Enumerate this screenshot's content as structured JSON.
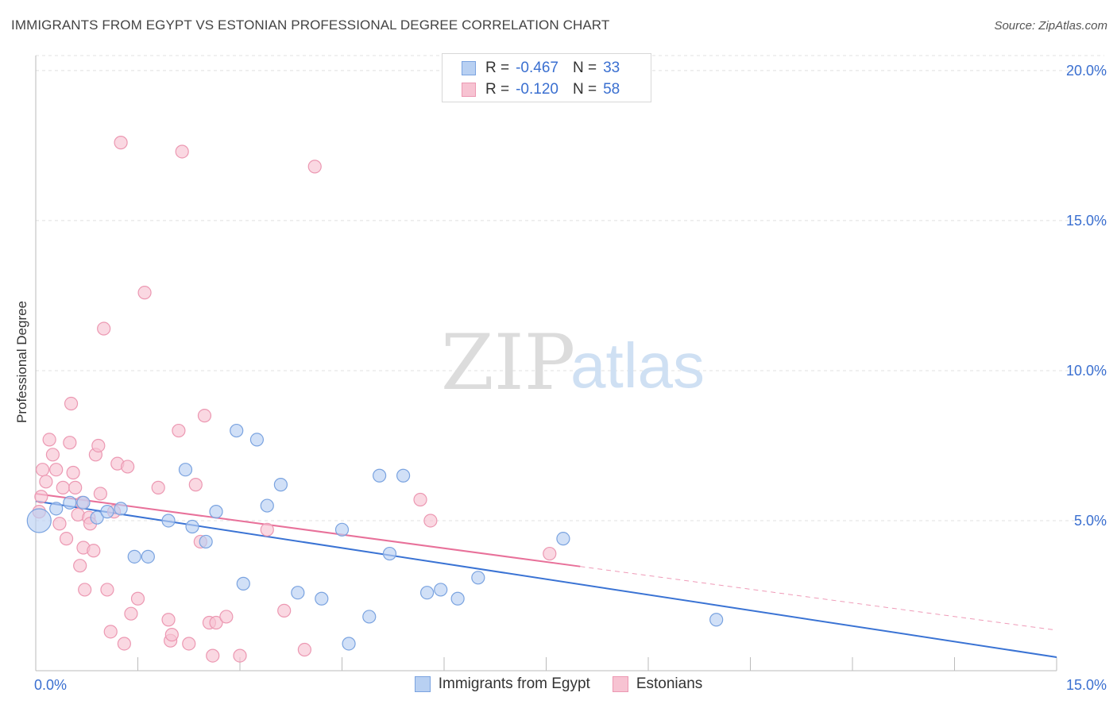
{
  "header": {
    "title": "IMMIGRANTS FROM EGYPT VS ESTONIAN PROFESSIONAL DEGREE CORRELATION CHART",
    "source": "Source: ZipAtlas.com"
  },
  "watermark": {
    "zip": "ZIP",
    "atlas": "atlas"
  },
  "legend": {
    "rows": [
      {
        "r_label": "R =",
        "r_value": "-0.467",
        "n_label": "N =",
        "n_value": "33"
      },
      {
        "r_label": "R =",
        "r_value": "-0.120",
        "n_label": "N =",
        "n_value": "58"
      }
    ]
  },
  "colors": {
    "blue_fill": "#b8d0f2",
    "blue_stroke": "#7aa3e0",
    "blue_line": "#3a73d4",
    "pink_fill": "#f7c3d2",
    "pink_stroke": "#ec98b2",
    "pink_line": "#e8719a"
  },
  "chart_data": {
    "type": "scatter",
    "title": "IMMIGRANTS FROM EGYPT VS ESTONIAN PROFESSIONAL DEGREE CORRELATION CHART",
    "xlabel": "",
    "ylabel": "Professional Degree",
    "xlim": [
      0,
      15
    ],
    "ylim": [
      0,
      20.5
    ],
    "x_tick_labels": [
      "0.0%",
      "15.0%"
    ],
    "y_ticks": [
      5,
      10,
      15,
      20
    ],
    "y_tick_labels": [
      "5.0%",
      "10.0%",
      "15.0%",
      "20.0%"
    ],
    "grid": true,
    "series": [
      {
        "name": "Immigrants from Egypt",
        "r": -0.467,
        "n": 33,
        "trend": {
          "x0": 0,
          "y0": 5.65,
          "x1": 15,
          "y1": 0.45,
          "solid_to": 15
        },
        "points": [
          {
            "x": 0.05,
            "y": 5.0,
            "big": true
          },
          {
            "x": 0.3,
            "y": 5.4
          },
          {
            "x": 0.5,
            "y": 5.6
          },
          {
            "x": 0.7,
            "y": 5.6
          },
          {
            "x": 0.9,
            "y": 5.1
          },
          {
            "x": 1.05,
            "y": 5.3
          },
          {
            "x": 1.25,
            "y": 5.4
          },
          {
            "x": 1.45,
            "y": 3.8
          },
          {
            "x": 1.65,
            "y": 3.8
          },
          {
            "x": 1.95,
            "y": 5.0
          },
          {
            "x": 2.2,
            "y": 6.7
          },
          {
            "x": 2.3,
            "y": 4.8
          },
          {
            "x": 2.5,
            "y": 4.3
          },
          {
            "x": 2.65,
            "y": 5.3
          },
          {
            "x": 2.95,
            "y": 8.0
          },
          {
            "x": 3.05,
            "y": 2.9
          },
          {
            "x": 3.25,
            "y": 7.7
          },
          {
            "x": 3.4,
            "y": 5.5
          },
          {
            "x": 3.6,
            "y": 6.2
          },
          {
            "x": 3.85,
            "y": 2.6
          },
          {
            "x": 4.2,
            "y": 2.4
          },
          {
            "x": 4.5,
            "y": 4.7
          },
          {
            "x": 4.6,
            "y": 0.9
          },
          {
            "x": 4.9,
            "y": 1.8
          },
          {
            "x": 5.05,
            "y": 6.5
          },
          {
            "x": 5.2,
            "y": 3.9
          },
          {
            "x": 5.4,
            "y": 6.5
          },
          {
            "x": 5.75,
            "y": 2.6
          },
          {
            "x": 5.95,
            "y": 2.7
          },
          {
            "x": 6.2,
            "y": 2.4
          },
          {
            "x": 6.5,
            "y": 3.1
          },
          {
            "x": 7.75,
            "y": 4.4
          },
          {
            "x": 10.0,
            "y": 1.7
          }
        ]
      },
      {
        "name": "Estonians",
        "r": -0.12,
        "n": 58,
        "trend": {
          "x0": 0,
          "y0": 5.9,
          "x1": 15,
          "y1": 1.35,
          "solid_to": 8.0
        },
        "points": [
          {
            "x": 0.05,
            "y": 5.3
          },
          {
            "x": 0.08,
            "y": 5.8
          },
          {
            "x": 0.1,
            "y": 6.7
          },
          {
            "x": 0.15,
            "y": 6.3
          },
          {
            "x": 0.2,
            "y": 7.7
          },
          {
            "x": 0.25,
            "y": 7.2
          },
          {
            "x": 0.3,
            "y": 6.7
          },
          {
            "x": 0.35,
            "y": 4.9
          },
          {
            "x": 0.4,
            "y": 6.1
          },
          {
            "x": 0.45,
            "y": 4.4
          },
          {
            "x": 0.5,
            "y": 7.6
          },
          {
            "x": 0.55,
            "y": 6.6
          },
          {
            "x": 0.52,
            "y": 8.9
          },
          {
            "x": 0.58,
            "y": 6.1
          },
          {
            "x": 0.62,
            "y": 5.2
          },
          {
            "x": 0.65,
            "y": 3.5
          },
          {
            "x": 0.68,
            "y": 5.6
          },
          {
            "x": 0.7,
            "y": 4.1
          },
          {
            "x": 0.72,
            "y": 2.7
          },
          {
            "x": 0.78,
            "y": 5.1
          },
          {
            "x": 0.8,
            "y": 4.9
          },
          {
            "x": 0.85,
            "y": 4.0
          },
          {
            "x": 0.88,
            "y": 7.2
          },
          {
            "x": 0.92,
            "y": 7.5
          },
          {
            "x": 0.95,
            "y": 5.9
          },
          {
            "x": 1.0,
            "y": 11.4
          },
          {
            "x": 1.05,
            "y": 2.7
          },
          {
            "x": 1.1,
            "y": 1.3
          },
          {
            "x": 1.15,
            "y": 5.3
          },
          {
            "x": 1.2,
            "y": 6.9
          },
          {
            "x": 1.3,
            "y": 0.9
          },
          {
            "x": 1.35,
            "y": 6.8
          },
          {
            "x": 1.4,
            "y": 1.9
          },
          {
            "x": 1.5,
            "y": 2.4
          },
          {
            "x": 1.6,
            "y": 12.6
          },
          {
            "x": 1.25,
            "y": 17.6
          },
          {
            "x": 1.8,
            "y": 6.1
          },
          {
            "x": 1.95,
            "y": 1.7
          },
          {
            "x": 1.98,
            "y": 1.0
          },
          {
            "x": 2.0,
            "y": 1.2
          },
          {
            "x": 2.1,
            "y": 8.0
          },
          {
            "x": 2.15,
            "y": 17.3
          },
          {
            "x": 2.25,
            "y": 0.9
          },
          {
            "x": 2.35,
            "y": 6.2
          },
          {
            "x": 2.42,
            "y": 4.3
          },
          {
            "x": 2.48,
            "y": 8.5
          },
          {
            "x": 2.55,
            "y": 1.6
          },
          {
            "x": 2.6,
            "y": 0.5
          },
          {
            "x": 2.65,
            "y": 1.6
          },
          {
            "x": 2.8,
            "y": 1.8
          },
          {
            "x": 3.0,
            "y": 0.5
          },
          {
            "x": 3.4,
            "y": 4.7
          },
          {
            "x": 3.65,
            "y": 2.0
          },
          {
            "x": 3.95,
            "y": 0.7
          },
          {
            "x": 4.1,
            "y": 16.8
          },
          {
            "x": 5.65,
            "y": 5.7
          },
          {
            "x": 5.8,
            "y": 5.0
          },
          {
            "x": 7.55,
            "y": 3.9
          }
        ]
      }
    ]
  }
}
